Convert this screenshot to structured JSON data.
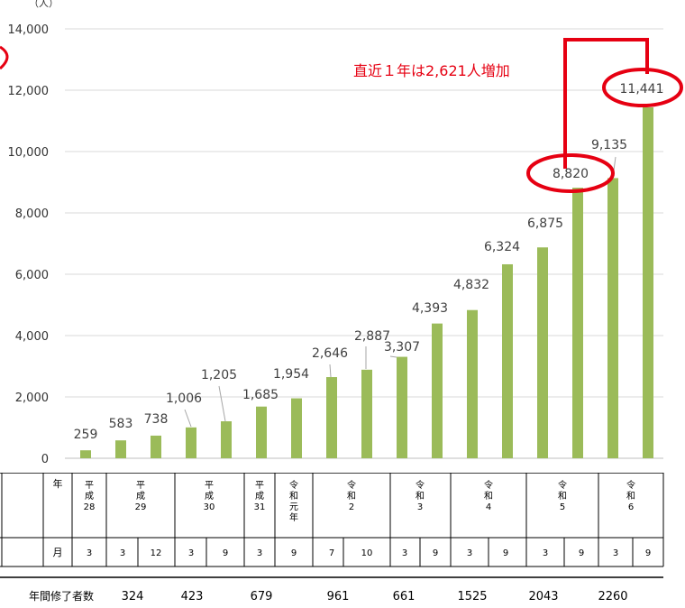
{
  "chart_data": {
    "type": "bar",
    "unit_label": "（人）",
    "ylim": [
      0,
      14000
    ],
    "yticks": [
      "0",
      "2,000",
      "4,000",
      "6,000",
      "8,000",
      "10,000",
      "12,000",
      "14,000"
    ],
    "ytick_values": [
      0,
      2000,
      4000,
      6000,
      8000,
      10000,
      12000,
      14000
    ],
    "grid": true,
    "color": "#9bbb59",
    "values": [
      259,
      583,
      738,
      1006,
      1205,
      1685,
      1954,
      2646,
      2887,
      3307,
      4393,
      4832,
      6324,
      6875,
      8820,
      9135,
      11441
    ],
    "labels": [
      "259",
      "583",
      "738",
      "1,006",
      "1,205",
      "1,685",
      "1,954",
      "2,646",
      "2,887",
      "3,307",
      "4,393",
      "4,832",
      "6,324",
      "6,875",
      "8,820",
      "9,135",
      "11,441"
    ],
    "highlight_indices": [
      14,
      16
    ],
    "annotation": "直近１年は2,621人増加"
  },
  "table": {
    "year_header": "年",
    "month_header": "月",
    "years": [
      "平\n成\n28",
      "平\n成\n29",
      "平\n成\n30",
      "平\n成\n31",
      "令\n和\n元\n年",
      "令\n和\n2",
      "令\n和\n3",
      "令\n和\n4",
      "令\n和\n5",
      "令\n和\n6"
    ],
    "months": [
      "3",
      "3",
      "12",
      "3",
      "9",
      "3",
      "9",
      "7",
      "10",
      "3",
      "9",
      "3",
      "9",
      "3",
      "9",
      "3",
      "9"
    ],
    "annual_label": "年間修了者数",
    "annual_values": [
      "324",
      "423",
      "679",
      "961",
      "661",
      "1525",
      "2043",
      "2260"
    ]
  },
  "colors": {
    "bar": "#9bbb59",
    "highlight": "#e60012",
    "grid": "#d9d9d9"
  }
}
